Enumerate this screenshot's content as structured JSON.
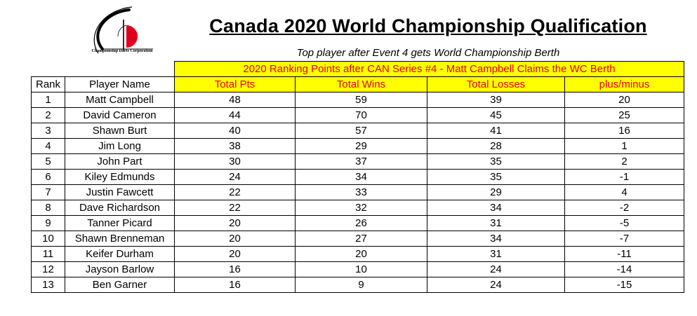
{
  "logo": {
    "text": "Championship Darts Corporation"
  },
  "title": "Canada 2020 World Championship Qualification",
  "subtitle": "Top player after Event 4 gets World Championship Berth",
  "banner": "2020 Ranking Points after CAN Series #4 - Matt Campbell Claims the WC Berth",
  "headers": [
    "Rank",
    "Player Name",
    "Total Pts",
    "Total Wins",
    "Total Losses",
    "plus/minus"
  ],
  "colors": {
    "highlight": "#ffff00",
    "header_text": "#e0001a",
    "logo_red": "#e0001a"
  },
  "rows": [
    {
      "rank": "1",
      "name": "Matt Campbell",
      "pts": "48",
      "wins": "59",
      "losses": "39",
      "pm": "20"
    },
    {
      "rank": "2",
      "name": "David Cameron",
      "pts": "44",
      "wins": "70",
      "losses": "45",
      "pm": "25"
    },
    {
      "rank": "3",
      "name": "Shawn Burt",
      "pts": "40",
      "wins": "57",
      "losses": "41",
      "pm": "16"
    },
    {
      "rank": "4",
      "name": "Jim Long",
      "pts": "38",
      "wins": "29",
      "losses": "28",
      "pm": "1"
    },
    {
      "rank": "5",
      "name": "John Part",
      "pts": "30",
      "wins": "37",
      "losses": "35",
      "pm": "2"
    },
    {
      "rank": "6",
      "name": "Kiley Edmunds",
      "pts": "24",
      "wins": "34",
      "losses": "35",
      "pm": "-1"
    },
    {
      "rank": "7",
      "name": "Justin Fawcett",
      "pts": "22",
      "wins": "33",
      "losses": "29",
      "pm": "4"
    },
    {
      "rank": "8",
      "name": "Dave Richardson",
      "pts": "22",
      "wins": "32",
      "losses": "34",
      "pm": "-2"
    },
    {
      "rank": "9",
      "name": "Tanner Picard",
      "pts": "20",
      "wins": "26",
      "losses": "31",
      "pm": "-5"
    },
    {
      "rank": "10",
      "name": "Shawn Brenneman",
      "pts": "20",
      "wins": "27",
      "losses": "34",
      "pm": "-7"
    },
    {
      "rank": "11",
      "name": "Keifer Durham",
      "pts": "20",
      "wins": "20",
      "losses": "31",
      "pm": "-11"
    },
    {
      "rank": "12",
      "name": "Jayson Barlow",
      "pts": "16",
      "wins": "10",
      "losses": "24",
      "pm": "-14"
    },
    {
      "rank": "13",
      "name": "Ben Garner",
      "pts": "16",
      "wins": "9",
      "losses": "24",
      "pm": "-15"
    }
  ]
}
